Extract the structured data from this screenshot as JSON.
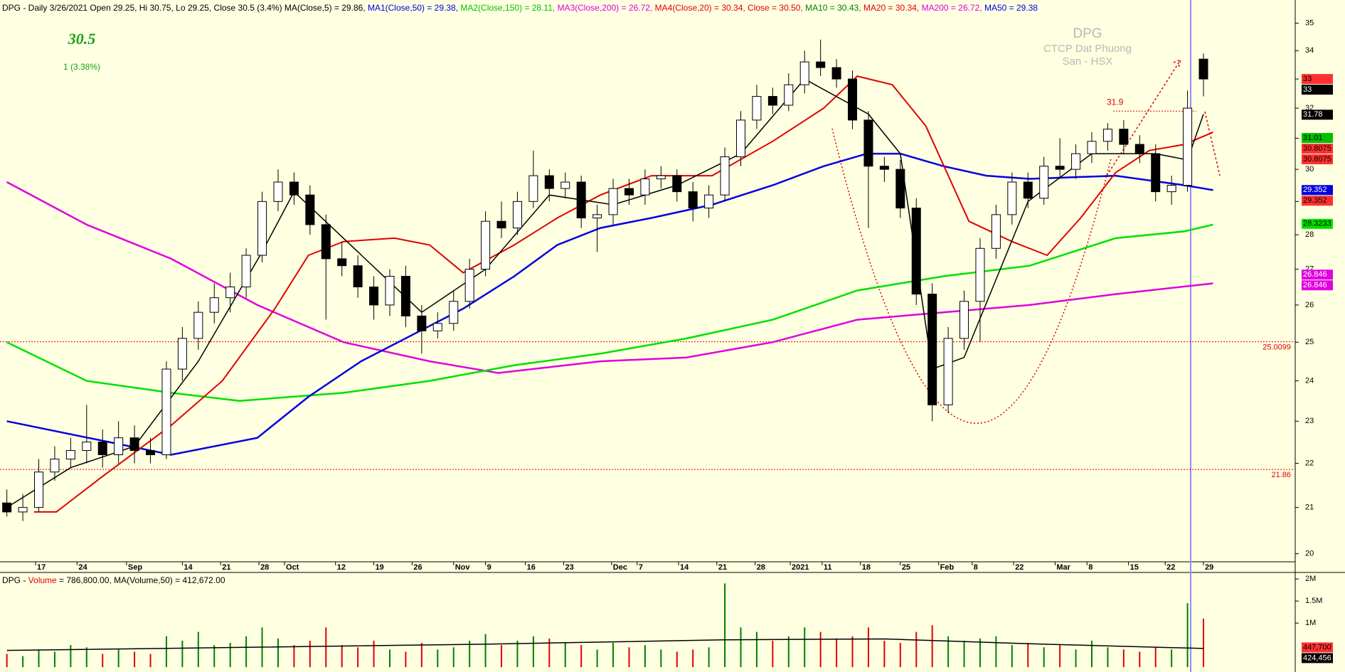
{
  "chart_data": {
    "type": "candlestick",
    "header": [
      {
        "text": "DPG - Daily 3/26/2021 Open 29.25, Hi 30.75, Lo 29.25, Close 30.5 (3.4%) MA(Close,5) = 29.86, ",
        "color": "#000000"
      },
      {
        "text": "MA1(Close,50) = 29.38, ",
        "color": "#0000e0"
      },
      {
        "text": "MA2(Close,150) = 28.11, ",
        "color": "#00c000"
      },
      {
        "text": "MA3(Close,200) = 26.72, ",
        "color": "#e000e0"
      },
      {
        "text": "MA4(Close,20) = 30.34, ",
        "color": "#e00000"
      },
      {
        "text": "Close = 30.50, ",
        "color": "#e00000"
      },
      {
        "text": "MA10 = 30.43, ",
        "color": "#008000"
      },
      {
        "text": "MA20 = 30.34, ",
        "color": "#e00000"
      },
      {
        "text": "MA200 = 26.72, ",
        "color": "#e000e0"
      },
      {
        "text": "MA50 = 29.38",
        "color": "#0000e0"
      }
    ],
    "last_price": 30.5,
    "change": "1  (3.38%)",
    "watermark": [
      "DPG",
      "CTCP Dat Phuong",
      "San - HSX"
    ],
    "log_scale": true,
    "ylim": [
      19.83,
      35.6
    ],
    "yticks": [
      20,
      21,
      22,
      23,
      24,
      25,
      26,
      27,
      28,
      29,
      30,
      31,
      32,
      33,
      34,
      35
    ],
    "xlim": [
      -0.43,
      80.75
    ],
    "xticks": [
      {
        "value": 1.8,
        "label": "17"
      },
      {
        "value": 4.4,
        "label": "24"
      },
      {
        "value": 7.5,
        "label": "Sep"
      },
      {
        "value": 11.0,
        "label": "14"
      },
      {
        "value": 13.4,
        "label": "21"
      },
      {
        "value": 15.8,
        "label": "28"
      },
      {
        "value": 17.4,
        "label": "Oct"
      },
      {
        "value": 20.6,
        "label": "12"
      },
      {
        "value": 23.0,
        "label": "19"
      },
      {
        "value": 25.4,
        "label": "26"
      },
      {
        "value": 28.0,
        "label": "Nov"
      },
      {
        "value": 30.0,
        "label": "9"
      },
      {
        "value": 32.5,
        "label": "16"
      },
      {
        "value": 34.9,
        "label": "23"
      },
      {
        "value": 37.9,
        "label": "Dec"
      },
      {
        "value": 39.5,
        "label": "7"
      },
      {
        "value": 42.1,
        "label": "14"
      },
      {
        "value": 44.5,
        "label": "21"
      },
      {
        "value": 46.9,
        "label": "28"
      },
      {
        "value": 49.1,
        "label": "2021"
      },
      {
        "value": 51.1,
        "label": "11"
      },
      {
        "value": 53.5,
        "label": "18"
      },
      {
        "value": 56.0,
        "label": "25"
      },
      {
        "value": 58.4,
        "label": "Feb"
      },
      {
        "value": 60.5,
        "label": "8"
      },
      {
        "value": 63.1,
        "label": "22"
      },
      {
        "value": 65.7,
        "label": "Mar"
      },
      {
        "value": 67.7,
        "label": "8"
      },
      {
        "value": 70.3,
        "label": "15"
      },
      {
        "value": 72.6,
        "label": "22"
      },
      {
        "value": 75.0,
        "label": "29"
      }
    ],
    "up_color": "#ffffff",
    "down_color": "#000000",
    "candles": [
      [
        21.1,
        21.4,
        20.8,
        20.9
      ],
      [
        20.9,
        21.3,
        20.7,
        21.0
      ],
      [
        21.0,
        22.1,
        20.9,
        21.8
      ],
      [
        21.8,
        22.4,
        21.6,
        22.1
      ],
      [
        22.1,
        22.6,
        21.9,
        22.3
      ],
      [
        22.3,
        23.4,
        22.0,
        22.5
      ],
      [
        22.5,
        22.8,
        21.9,
        22.2
      ],
      [
        22.2,
        23.0,
        22.0,
        22.6
      ],
      [
        22.6,
        22.9,
        22.0,
        22.3
      ],
      [
        22.3,
        22.6,
        22.0,
        22.2
      ],
      [
        22.2,
        24.5,
        22.1,
        24.3
      ],
      [
        24.3,
        25.4,
        24.0,
        25.1
      ],
      [
        25.1,
        26.1,
        24.8,
        25.8
      ],
      [
        25.8,
        26.6,
        25.5,
        26.2
      ],
      [
        26.2,
        26.9,
        25.8,
        26.5
      ],
      [
        26.5,
        27.6,
        26.2,
        27.4
      ],
      [
        27.4,
        29.3,
        27.2,
        29.0
      ],
      [
        29.0,
        30.0,
        28.7,
        29.6
      ],
      [
        29.6,
        29.9,
        28.9,
        29.2
      ],
      [
        29.2,
        29.5,
        28.0,
        28.3
      ],
      [
        28.3,
        28.6,
        25.6,
        27.3
      ],
      [
        27.3,
        27.8,
        26.8,
        27.1
      ],
      [
        27.1,
        27.4,
        26.2,
        26.5
      ],
      [
        26.5,
        26.8,
        25.6,
        26.0
      ],
      [
        26.0,
        27.0,
        25.7,
        26.8
      ],
      [
        26.8,
        27.1,
        25.4,
        25.7
      ],
      [
        25.7,
        26.0,
        24.7,
        25.3
      ],
      [
        25.3,
        25.8,
        25.1,
        25.5
      ],
      [
        25.5,
        26.4,
        25.3,
        26.1
      ],
      [
        26.1,
        27.3,
        25.9,
        27.0
      ],
      [
        27.0,
        28.7,
        26.8,
        28.4
      ],
      [
        28.4,
        29.0,
        27.9,
        28.2
      ],
      [
        28.2,
        29.3,
        28.0,
        29.0
      ],
      [
        29.0,
        30.6,
        28.8,
        29.8
      ],
      [
        29.8,
        30.0,
        29.0,
        29.4
      ],
      [
        29.4,
        29.9,
        29.1,
        29.6
      ],
      [
        29.6,
        29.8,
        28.2,
        28.5
      ],
      [
        28.5,
        28.9,
        27.5,
        28.6
      ],
      [
        28.6,
        29.7,
        28.3,
        29.4
      ],
      [
        29.4,
        29.7,
        28.9,
        29.2
      ],
      [
        29.2,
        30.0,
        28.9,
        29.7
      ],
      [
        29.7,
        30.1,
        29.4,
        29.8
      ],
      [
        29.8,
        30.0,
        29.0,
        29.3
      ],
      [
        29.3,
        29.6,
        28.4,
        28.8
      ],
      [
        28.8,
        29.5,
        28.5,
        29.2
      ],
      [
        29.2,
        30.7,
        29.0,
        30.4
      ],
      [
        30.4,
        31.9,
        30.1,
        31.6
      ],
      [
        31.6,
        32.8,
        31.3,
        32.4
      ],
      [
        32.4,
        32.7,
        31.8,
        32.1
      ],
      [
        32.1,
        33.2,
        31.9,
        32.8
      ],
      [
        32.8,
        34.0,
        32.5,
        33.6
      ],
      [
        33.6,
        34.4,
        33.1,
        33.4
      ],
      [
        33.4,
        33.7,
        32.7,
        33.0
      ],
      [
        33.0,
        33.3,
        31.3,
        31.6
      ],
      [
        31.6,
        31.9,
        28.2,
        30.1
      ],
      [
        30.1,
        30.4,
        29.6,
        30.0
      ],
      [
        30.0,
        30.3,
        28.5,
        28.8
      ],
      [
        28.8,
        29.1,
        26.0,
        26.3
      ],
      [
        26.3,
        26.6,
        23.0,
        23.4
      ],
      [
        23.4,
        25.4,
        23.2,
        25.1
      ],
      [
        25.1,
        26.4,
        24.8,
        26.1
      ],
      [
        26.1,
        27.9,
        25.0,
        27.6
      ],
      [
        27.6,
        28.9,
        27.3,
        28.6
      ],
      [
        28.6,
        29.9,
        28.3,
        29.6
      ],
      [
        29.6,
        29.9,
        28.8,
        29.1
      ],
      [
        29.1,
        30.4,
        28.9,
        30.1
      ],
      [
        30.1,
        31.0,
        29.7,
        30.0
      ],
      [
        30.0,
        30.8,
        29.7,
        30.5
      ],
      [
        30.5,
        31.2,
        30.2,
        30.9
      ],
      [
        30.9,
        31.5,
        30.6,
        31.3
      ],
      [
        31.3,
        31.6,
        30.5,
        30.8
      ],
      [
        30.8,
        31.1,
        30.2,
        30.5
      ],
      [
        30.5,
        30.8,
        29.0,
        29.3
      ],
      [
        29.3,
        29.8,
        28.9,
        29.5
      ],
      [
        29.5,
        32.6,
        29.3,
        32.0
      ],
      [
        33.7,
        33.9,
        32.4,
        33.0
      ]
    ],
    "series": [
      {
        "name": "MA3(Close,200)",
        "color": "#e000e0",
        "width": 2.5,
        "x": [
          0,
          5.0,
          10.3,
          15.7,
          21.1,
          26.5,
          30.8,
          37.2,
          42.6,
          48.0,
          53.3,
          58.7,
          64.1,
          69.5,
          75.6
        ],
        "values": [
          29.6,
          28.3,
          27.3,
          26.0,
          25.0,
          24.5,
          24.2,
          24.5,
          24.6,
          25.0,
          25.6,
          25.8,
          26.0,
          26.3,
          26.6
        ]
      },
      {
        "name": "MA2(Close,150)",
        "color": "#00e000",
        "width": 2.5,
        "x": [
          0,
          5.0,
          10.3,
          14.6,
          21.1,
          26.5,
          31.8,
          37.2,
          42.6,
          48.0,
          53.3,
          58.7,
          64.1,
          69.5,
          73.8,
          75.6
        ],
        "values": [
          25.0,
          24.0,
          23.7,
          23.5,
          23.7,
          24.0,
          24.4,
          24.7,
          25.1,
          25.6,
          26.4,
          26.8,
          27.1,
          27.9,
          28.1,
          28.3
        ]
      },
      {
        "name": "MA1(Close,50)",
        "color": "#0000e0",
        "width": 2.5,
        "x": [
          0,
          10.3,
          15.7,
          18.9,
          22.2,
          25.9,
          28.6,
          31.8,
          34.5,
          37.2,
          40.4,
          44.2,
          48.0,
          51.2,
          53.9,
          56.0,
          58.7,
          61.4,
          64.1,
          69.5,
          73.8,
          75.6
        ],
        "values": [
          23.0,
          22.2,
          22.6,
          23.6,
          24.5,
          25.3,
          25.9,
          26.8,
          27.7,
          28.2,
          28.5,
          28.9,
          29.5,
          30.1,
          30.5,
          30.5,
          30.1,
          29.8,
          29.7,
          29.8,
          29.5,
          29.35
        ]
      },
      {
        "name": "MA4(Close,20)",
        "color": "#e00000",
        "width": 2,
        "x": [
          1.7,
          3.1,
          6.0,
          10.3,
          13.5,
          16.8,
          18.9,
          21.1,
          24.3,
          26.5,
          28.6,
          31.8,
          34.5,
          37.2,
          40.4,
          44.2,
          48.0,
          51.2,
          53.3,
          55.5,
          57.6,
          60.3,
          63.0,
          65.2,
          67.3,
          69.5,
          71.6,
          73.8,
          75.6
        ],
        "values": [
          20.9,
          20.9,
          21.7,
          22.9,
          24.0,
          25.9,
          27.4,
          27.8,
          27.9,
          27.7,
          26.9,
          27.7,
          28.5,
          29.2,
          29.8,
          29.8,
          30.9,
          32.0,
          33.1,
          32.8,
          31.4,
          28.4,
          27.8,
          27.4,
          28.5,
          29.9,
          30.6,
          30.8,
          31.2
        ]
      },
      {
        "name": "MA(Close,5)",
        "color": "#000000",
        "width": 1.5,
        "x": [
          0,
          4,
          8,
          12,
          16,
          18,
          22,
          26,
          30,
          34,
          38,
          42,
          46,
          50,
          54,
          56,
          58,
          60,
          64,
          68,
          72,
          74,
          75
        ],
        "values": [
          21.0,
          21.9,
          22.4,
          24.5,
          27.5,
          29.3,
          27.5,
          25.8,
          27.0,
          29.2,
          28.9,
          29.5,
          30.5,
          33.0,
          31.8,
          30.5,
          24.3,
          24.6,
          29.0,
          30.5,
          30.5,
          30.3,
          31.8
        ]
      }
    ],
    "hline_color": "#e00000",
    "hlines": [
      25.0099,
      21.86
    ],
    "resistance": 31.9,
    "badges": [
      {
        "value": 33,
        "label": "33",
        "color": "#ff3030"
      },
      {
        "value": 33,
        "label": "33",
        "color": "#000000"
      },
      {
        "value": 31.78,
        "label": "31.78",
        "color": "#000000"
      },
      {
        "value": 31.01,
        "label": "31.01",
        "color": "#00c000"
      },
      {
        "value": 30.8075,
        "label": "30.8075",
        "color": "#ff3030"
      },
      {
        "value": 30.8075,
        "label": "30.8075",
        "color": "#ff3030"
      },
      {
        "value": 29.352,
        "label": "29.352",
        "color": "#0000e0"
      },
      {
        "value": 29.352,
        "label": "29.352",
        "color": "#ff3030"
      },
      {
        "value": 28.3233,
        "label": "28.3233",
        "color": "#00e000"
      },
      {
        "value": 26.846,
        "label": "26.846",
        "color": "#e000e0"
      },
      {
        "value": 26.846,
        "label": "26.846",
        "color": "#e000e0"
      }
    ],
    "volume": {
      "header": [
        {
          "text": "DPG - ",
          "color": "#000000"
        },
        {
          "text": "Volume",
          "color": "#e00000"
        },
        {
          "text": " = 786,800.00, MA(Volume,50) = 412,672.00",
          "color": "#000000"
        }
      ],
      "ylim": [
        -110000,
        2100000
      ],
      "yticks": [
        {
          "value": 2000000,
          "label": "2M"
        },
        {
          "value": 1500000,
          "label": "1.5M"
        },
        {
          "value": 1000000,
          "label": "1M"
        }
      ],
      "up_color": "#008000",
      "down_color": "#e00000",
      "values": [
        300000,
        250000,
        400000,
        350000,
        500000,
        450000,
        300000,
        400000,
        350000,
        300000,
        700000,
        600000,
        800000,
        500000,
        550000,
        700000,
        900000,
        650000,
        500000,
        600000,
        900000,
        500000,
        450000,
        600000,
        400000,
        350000,
        550000,
        400000,
        450000,
        600000,
        750000,
        500000,
        600000,
        700000,
        650000,
        550000,
        500000,
        400000,
        550000,
        450000,
        500000,
        400000,
        350000,
        400000,
        450000,
        1900000,
        900000,
        800000,
        600000,
        700000,
        900000,
        800000,
        650000,
        700000,
        900000,
        600000,
        550000,
        800000,
        950000,
        700000,
        600000,
        650000,
        700000,
        500000,
        550000,
        450000,
        500000,
        400000,
        600000,
        450000,
        400000,
        350000,
        450000,
        400000,
        1450000,
        1100000
      ],
      "ma": {
        "color": "#000000",
        "x": [
          0,
          15,
          30,
          45,
          55,
          65,
          75
        ],
        "values": [
          380000,
          450000,
          520000,
          620000,
          640000,
          520000,
          424456
        ]
      },
      "badges": [
        {
          "value": 447700,
          "label": "447,700",
          "color": "#ff3030"
        },
        {
          "value": 424456,
          "label": "424,456",
          "color": "#000000"
        }
      ]
    }
  }
}
